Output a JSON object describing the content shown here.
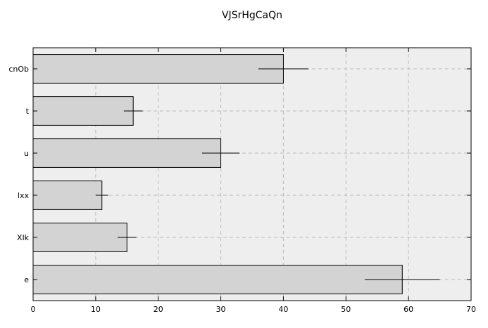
{
  "chart_data": {
    "type": "bar",
    "orientation": "horizontal",
    "title": "VJSrHgCaQn",
    "xlabel": "",
    "ylabel": "",
    "categories": [
      "cnOb",
      "t",
      "u",
      "lxx",
      "Xlk",
      "e"
    ],
    "values": [
      40,
      16,
      30,
      11,
      15,
      59
    ],
    "errors": [
      4,
      1.5,
      3,
      1,
      1.5,
      6
    ],
    "xlim": [
      0,
      70
    ],
    "xticks": [
      "0",
      "10",
      "20",
      "30",
      "40",
      "50",
      "60",
      "70"
    ],
    "grid": true,
    "colors": {
      "bar_fill": "#d3d3d3",
      "bar_edge": "#000000",
      "plot_background": "#eeeeee",
      "grid": "#bbbbbb"
    }
  }
}
